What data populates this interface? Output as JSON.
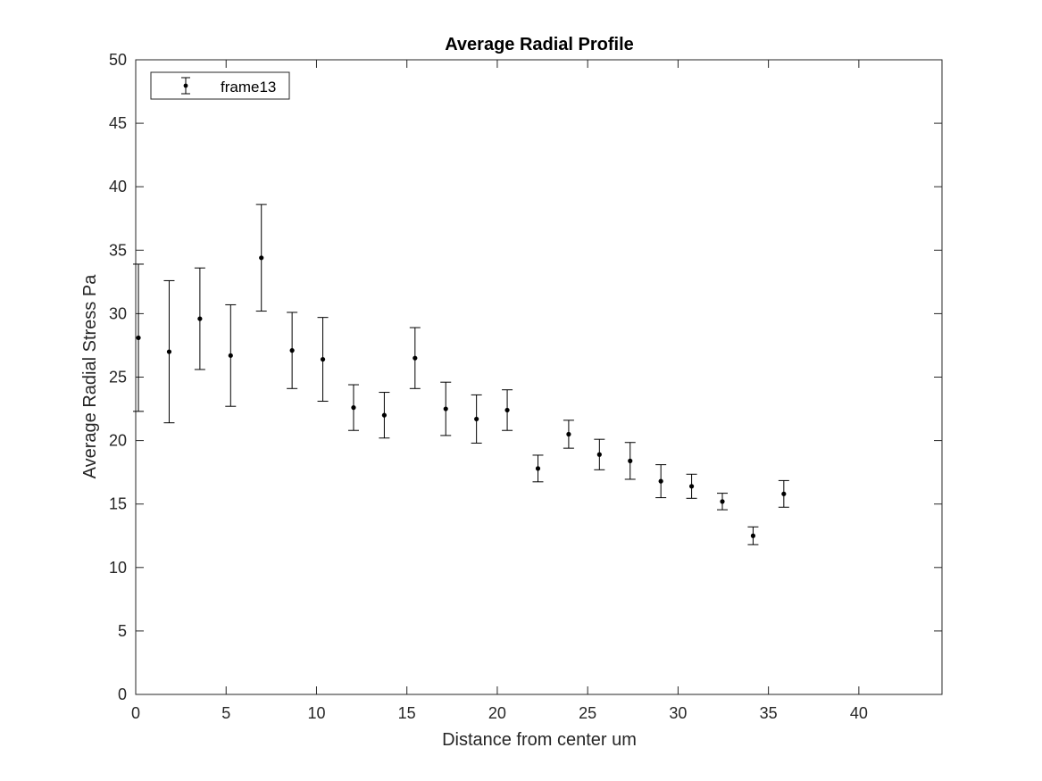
{
  "chart_data": {
    "type": "scatter",
    "title": "Average Radial Profile",
    "xlabel": "Distance from center um",
    "ylabel": "Average Radial Stress Pa",
    "xlim": [
      0,
      44.6
    ],
    "ylim": [
      0,
      50
    ],
    "xticks": [
      0,
      5,
      10,
      15,
      20,
      25,
      30,
      35,
      40
    ],
    "yticks": [
      0,
      5,
      10,
      15,
      20,
      25,
      30,
      35,
      40,
      45,
      50
    ],
    "grid": false,
    "legend_position": "top-left",
    "marker_color": "#000000",
    "series": [
      {
        "name": "frame13",
        "x": [
          0.15,
          1.85,
          3.55,
          5.25,
          6.95,
          8.65,
          10.35,
          12.05,
          13.75,
          15.45,
          17.15,
          18.85,
          20.55,
          22.25,
          23.95,
          25.65,
          27.35,
          29.05,
          30.75,
          32.45,
          34.15,
          35.85
        ],
        "y": [
          28.1,
          27.0,
          29.6,
          26.7,
          34.4,
          27.1,
          26.4,
          22.6,
          22.0,
          26.5,
          22.5,
          21.7,
          22.4,
          17.8,
          20.5,
          18.9,
          18.4,
          16.8,
          16.4,
          15.2,
          12.5,
          15.8
        ],
        "err": [
          5.8,
          5.6,
          4.0,
          4.0,
          4.2,
          3.0,
          3.3,
          1.8,
          1.8,
          2.4,
          2.1,
          1.9,
          1.6,
          1.05,
          1.1,
          1.2,
          1.45,
          1.3,
          0.95,
          0.65,
          0.7,
          1.05
        ]
      }
    ]
  }
}
